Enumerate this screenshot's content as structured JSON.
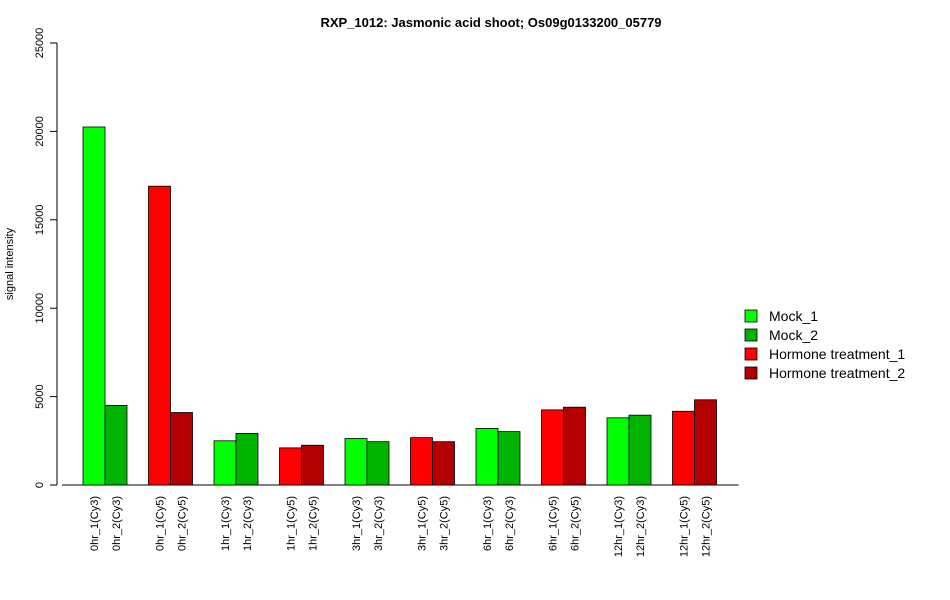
{
  "chart_data": {
    "type": "bar",
    "title": "RXP_1012: Jasmonic acid shoot; Os09g0133200_05779",
    "ylabel": "signal intensity",
    "xlabel": "",
    "ylim": [
      0,
      25000
    ],
    "yticks": [
      0,
      5000,
      10000,
      15000,
      20000,
      25000
    ],
    "grid": false,
    "legend_position": "right",
    "groups": [
      {
        "bars": [
          {
            "label": "0hr_1(Cy3)",
            "value": 20250,
            "series": 0
          },
          {
            "label": "0hr_2(Cy3)",
            "value": 4500,
            "series": 1
          }
        ]
      },
      {
        "bars": [
          {
            "label": "0hr_1(Cy5)",
            "value": 16900,
            "series": 2
          },
          {
            "label": "0hr_2(Cy5)",
            "value": 4100,
            "series": 3
          }
        ]
      },
      {
        "bars": [
          {
            "label": "1hr_1(Cy3)",
            "value": 2500,
            "series": 0
          },
          {
            "label": "1hr_2(Cy3)",
            "value": 2920,
            "series": 1
          }
        ]
      },
      {
        "bars": [
          {
            "label": "1hr_1(Cy5)",
            "value": 2100,
            "series": 2
          },
          {
            "label": "1hr_2(Cy5)",
            "value": 2250,
            "series": 3
          }
        ]
      },
      {
        "bars": [
          {
            "label": "3hr_1(Cy3)",
            "value": 2630,
            "series": 0
          },
          {
            "label": "3hr_2(Cy3)",
            "value": 2450,
            "series": 1
          }
        ]
      },
      {
        "bars": [
          {
            "label": "3hr_1(Cy5)",
            "value": 2680,
            "series": 2
          },
          {
            "label": "3hr_2(Cy5)",
            "value": 2450,
            "series": 3
          }
        ]
      },
      {
        "bars": [
          {
            "label": "6hr_1(Cy3)",
            "value": 3200,
            "series": 0
          },
          {
            "label": "6hr_2(Cy3)",
            "value": 3020,
            "series": 1
          }
        ]
      },
      {
        "bars": [
          {
            "label": "6hr_1(Cy5)",
            "value": 4250,
            "series": 2
          },
          {
            "label": "6hr_2(Cy5)",
            "value": 4400,
            "series": 3
          }
        ]
      },
      {
        "bars": [
          {
            "label": "12hr_1(Cy3)",
            "value": 3800,
            "series": 0
          },
          {
            "label": "12hr_2(Cy3)",
            "value": 3950,
            "series": 1
          }
        ]
      },
      {
        "bars": [
          {
            "label": "12hr_1(Cy5)",
            "value": 4170,
            "series": 2
          },
          {
            "label": "12hr_2(Cy5)",
            "value": 4820,
            "series": 3
          }
        ]
      }
    ],
    "series": [
      {
        "name": "Mock_1",
        "color": "#00ff00"
      },
      {
        "name": "Mock_2",
        "color": "#00b300"
      },
      {
        "name": "Hormone treatment_1",
        "color": "#ff0000"
      },
      {
        "name": "Hormone treatment_2",
        "color": "#b30000"
      }
    ]
  }
}
